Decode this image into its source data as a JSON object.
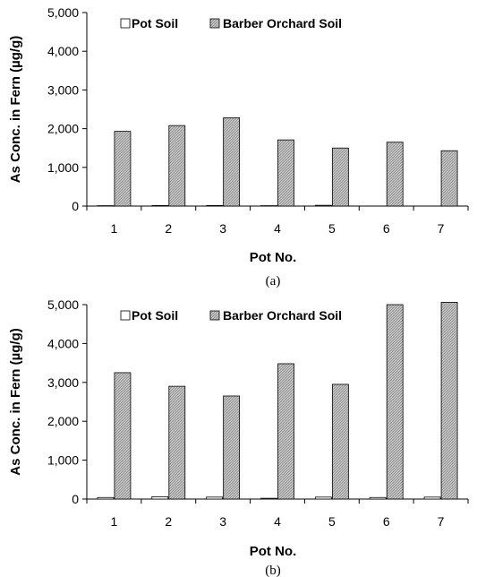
{
  "chart_data": [
    {
      "type": "bar",
      "caption": "(a)",
      "categories": [
        "1",
        "2",
        "3",
        "4",
        "5",
        "6",
        "7"
      ],
      "series": [
        {
          "name": "Pot Soil",
          "values": [
            10,
            15,
            15,
            10,
            20,
            0,
            0
          ],
          "color": "#ffffff"
        },
        {
          "name": "Barber Orchard Soil",
          "values": [
            1930,
            2080,
            2280,
            1710,
            1500,
            1650,
            1430
          ],
          "color": "#bdbdbd"
        }
      ],
      "xlabel": "Pot No.",
      "ylabel": "As Conc. in Fern (µg/g)",
      "ylim": [
        0,
        5000
      ],
      "yticks": [
        "0",
        "1,000",
        "2,000",
        "3,000",
        "4,000",
        "5,000"
      ],
      "legend": "top-left",
      "grid": false
    },
    {
      "type": "bar",
      "caption": "(b)",
      "categories": [
        "1",
        "2",
        "3",
        "4",
        "5",
        "6",
        "7"
      ],
      "series": [
        {
          "name": "Pot Soil",
          "values": [
            40,
            60,
            50,
            20,
            50,
            40,
            50
          ],
          "color": "#ffffff"
        },
        {
          "name": "Barber Orchard Soil",
          "values": [
            3250,
            2900,
            2650,
            3480,
            2950,
            5000,
            5060
          ],
          "color": "#bdbdbd"
        }
      ],
      "xlabel": "Pot No.",
      "ylabel": "As Conc. in Fern (µg/g)",
      "ylim": [
        0,
        5000
      ],
      "yticks": [
        "0",
        "1,000",
        "2,000",
        "3,000",
        "4,000",
        "5,000"
      ],
      "legend": "top-left",
      "grid": false
    }
  ]
}
